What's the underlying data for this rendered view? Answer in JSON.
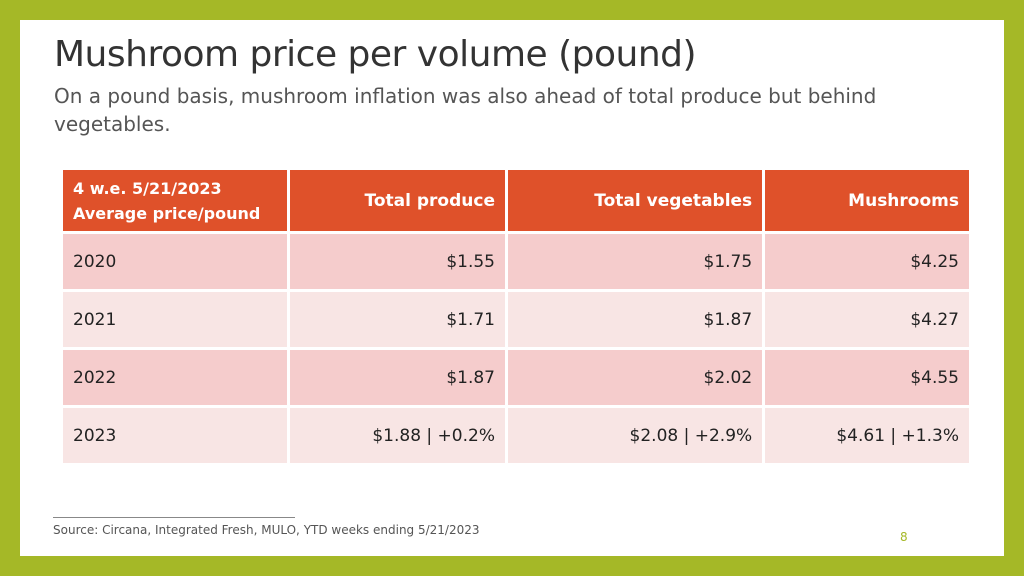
{
  "slide": {
    "title": "Mushroom price per volume (pound)",
    "subtitle": "On a pound basis, mushroom inflation was also ahead of total produce but behind vegetables.",
    "table": {
      "corner_line1": "4 w.e. 5/21/2023",
      "corner_line2": "Average price/pound",
      "columns": [
        "Total produce",
        "Total vegetables",
        "Mushrooms"
      ],
      "rows": [
        {
          "year": "2020",
          "values": [
            "$1.55",
            "$1.75",
            "$4.25"
          ]
        },
        {
          "year": "2021",
          "values": [
            "$1.71",
            "$1.87",
            "$4.27"
          ]
        },
        {
          "year": "2022",
          "values": [
            "$1.87",
            "$2.02",
            "$4.55"
          ]
        },
        {
          "year": "2023",
          "values": [
            "$1.88 | +0.2%",
            "$2.08 | +2.9%",
            "$4.61 | +1.3%"
          ]
        }
      ]
    },
    "source": "Source: Circana, Integrated Fresh, MULO, YTD weeks ending 5/21/2023",
    "page_number": "8"
  },
  "colors": {
    "frame": "#a5b827",
    "header": "#df512a",
    "row_dark": "#f5cccc",
    "row_light": "#f8e5e4"
  }
}
